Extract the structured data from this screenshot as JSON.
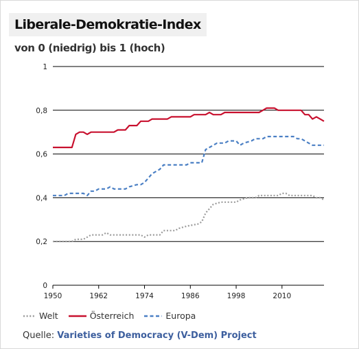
{
  "header": {
    "title": "Liberale-Demokratie-Index",
    "subtitle": "von 0 (niedrig) bis 1 (hoch)"
  },
  "source": {
    "label": "Quelle:",
    "name": "Varieties of Democracy (V-Dem) Project"
  },
  "colors": {
    "welt": "#9a9a9a",
    "oesterreich": "#c8102e",
    "europa": "#4a7fc4",
    "gridline": "#000000",
    "source_link": "#3d5f9e"
  },
  "chart_data": {
    "type": "line",
    "title": "Liberale-Demokratie-Index",
    "subtitle": "von 0 (niedrig) bis 1 (hoch)",
    "xlim": [
      1950,
      2021
    ],
    "ylim": [
      0,
      1
    ],
    "x_ticks": [
      1950,
      1962,
      1974,
      1986,
      1998,
      2010
    ],
    "y_ticks": [
      0,
      0.2,
      0.4,
      0.6,
      0.8,
      1
    ],
    "y_tick_labels": [
      "0",
      "0,2",
      "0,4",
      "0,6",
      "0,8",
      "1"
    ],
    "grid": "horizontal",
    "legend_position": "bottom",
    "series": [
      {
        "name": "Welt",
        "style": "dotted",
        "color": "#9a9a9a",
        "points": [
          [
            1950,
            0.2
          ],
          [
            1953,
            0.2
          ],
          [
            1955,
            0.2
          ],
          [
            1956,
            0.21
          ],
          [
            1958,
            0.21
          ],
          [
            1959,
            0.22
          ],
          [
            1960,
            0.23
          ],
          [
            1963,
            0.23
          ],
          [
            1964,
            0.24
          ],
          [
            1965,
            0.23
          ],
          [
            1973,
            0.23
          ],
          [
            1974,
            0.22
          ],
          [
            1975,
            0.23
          ],
          [
            1978,
            0.23
          ],
          [
            1979,
            0.25
          ],
          [
            1982,
            0.25
          ],
          [
            1983,
            0.26
          ],
          [
            1985,
            0.27
          ],
          [
            1988,
            0.28
          ],
          [
            1989,
            0.29
          ],
          [
            1990,
            0.33
          ],
          [
            1991,
            0.35
          ],
          [
            1992,
            0.37
          ],
          [
            1994,
            0.38
          ],
          [
            1998,
            0.38
          ],
          [
            1999,
            0.39
          ],
          [
            2001,
            0.4
          ],
          [
            2003,
            0.4
          ],
          [
            2004,
            0.41
          ],
          [
            2008,
            0.41
          ],
          [
            2009,
            0.41
          ],
          [
            2010,
            0.42
          ],
          [
            2011,
            0.42
          ],
          [
            2012,
            0.41
          ],
          [
            2018,
            0.41
          ],
          [
            2019,
            0.4
          ],
          [
            2020,
            0.4
          ],
          [
            2021,
            0.39
          ]
        ]
      },
      {
        "name": "Österreich",
        "style": "solid",
        "color": "#c8102e",
        "points": [
          [
            1950,
            0.63
          ],
          [
            1955,
            0.63
          ],
          [
            1956,
            0.69
          ],
          [
            1957,
            0.7
          ],
          [
            1958,
            0.7
          ],
          [
            1959,
            0.69
          ],
          [
            1960,
            0.7
          ],
          [
            1966,
            0.7
          ],
          [
            1967,
            0.71
          ],
          [
            1969,
            0.71
          ],
          [
            1970,
            0.73
          ],
          [
            1972,
            0.73
          ],
          [
            1973,
            0.75
          ],
          [
            1975,
            0.75
          ],
          [
            1976,
            0.76
          ],
          [
            1980,
            0.76
          ],
          [
            1981,
            0.77
          ],
          [
            1986,
            0.77
          ],
          [
            1987,
            0.78
          ],
          [
            1990,
            0.78
          ],
          [
            1991,
            0.79
          ],
          [
            1992,
            0.78
          ],
          [
            1994,
            0.78
          ],
          [
            1995,
            0.79
          ],
          [
            2004,
            0.79
          ],
          [
            2005,
            0.8
          ],
          [
            2006,
            0.81
          ],
          [
            2008,
            0.81
          ],
          [
            2009,
            0.8
          ],
          [
            2015,
            0.8
          ],
          [
            2016,
            0.78
          ],
          [
            2017,
            0.78
          ],
          [
            2018,
            0.76
          ],
          [
            2019,
            0.77
          ],
          [
            2020,
            0.76
          ],
          [
            2021,
            0.75
          ]
        ]
      },
      {
        "name": "Europa",
        "style": "dashed",
        "color": "#4a7fc4",
        "points": [
          [
            1950,
            0.41
          ],
          [
            1953,
            0.41
          ],
          [
            1954,
            0.42
          ],
          [
            1958,
            0.42
          ],
          [
            1959,
            0.41
          ],
          [
            1960,
            0.43
          ],
          [
            1961,
            0.43
          ],
          [
            1962,
            0.44
          ],
          [
            1964,
            0.44
          ],
          [
            1965,
            0.45
          ],
          [
            1966,
            0.44
          ],
          [
            1969,
            0.44
          ],
          [
            1970,
            0.45
          ],
          [
            1972,
            0.46
          ],
          [
            1973,
            0.46
          ],
          [
            1974,
            0.47
          ],
          [
            1975,
            0.49
          ],
          [
            1976,
            0.51
          ],
          [
            1977,
            0.52
          ],
          [
            1978,
            0.53
          ],
          [
            1979,
            0.55
          ],
          [
            1985,
            0.55
          ],
          [
            1986,
            0.56
          ],
          [
            1989,
            0.56
          ],
          [
            1990,
            0.62
          ],
          [
            1991,
            0.63
          ],
          [
            1992,
            0.64
          ],
          [
            1993,
            0.65
          ],
          [
            1995,
            0.65
          ],
          [
            1996,
            0.66
          ],
          [
            1998,
            0.66
          ],
          [
            1999,
            0.64
          ],
          [
            2000,
            0.65
          ],
          [
            2002,
            0.66
          ],
          [
            2003,
            0.67
          ],
          [
            2005,
            0.67
          ],
          [
            2006,
            0.68
          ],
          [
            2013,
            0.68
          ],
          [
            2014,
            0.67
          ],
          [
            2015,
            0.67
          ],
          [
            2017,
            0.65
          ],
          [
            2018,
            0.64
          ],
          [
            2021,
            0.64
          ]
        ]
      }
    ]
  }
}
